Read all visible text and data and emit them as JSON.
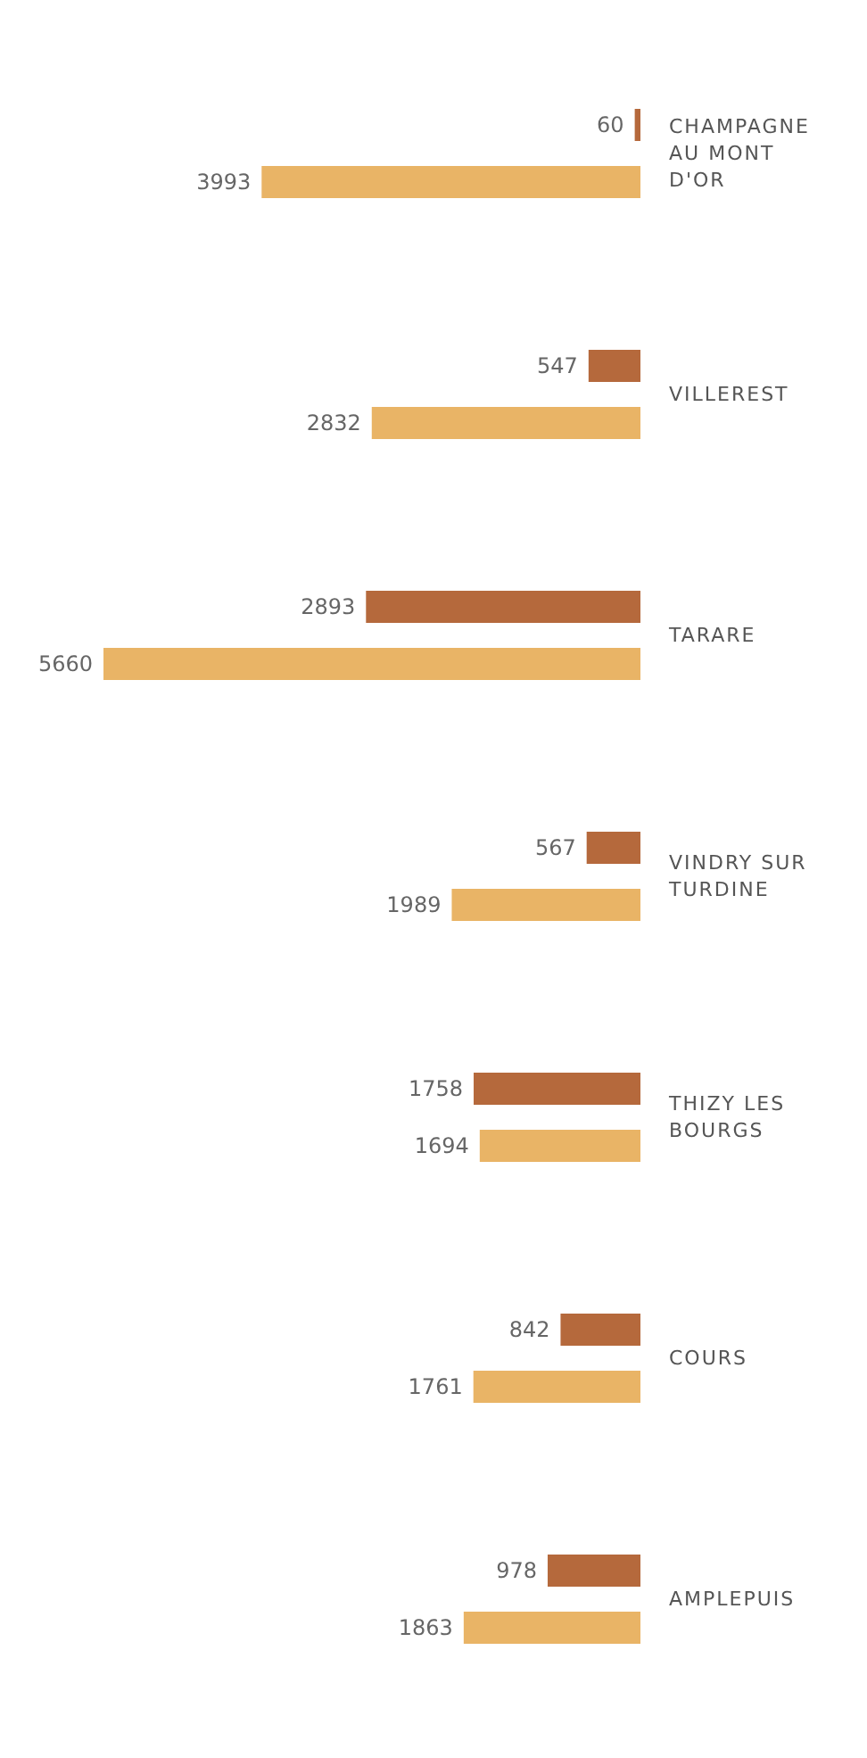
{
  "chart_data": {
    "type": "bar",
    "orientation": "horizontal",
    "categories": [
      "CHAMPAGNE AU MONT D'OR",
      "VILLEREST",
      "TARARE",
      "VINDRY SUR TURDINE",
      "THIZY LES BOURGS",
      "COURS",
      "AMPLEPUIS"
    ],
    "series": [
      {
        "color": "#b5693c",
        "values": [
          60,
          547,
          2893,
          567,
          1758,
          842,
          978
        ]
      },
      {
        "color": "#e9b466",
        "values": [
          3993,
          2832,
          5660,
          1989,
          1694,
          1761,
          1863
        ]
      }
    ],
    "data_labels": true
  }
}
